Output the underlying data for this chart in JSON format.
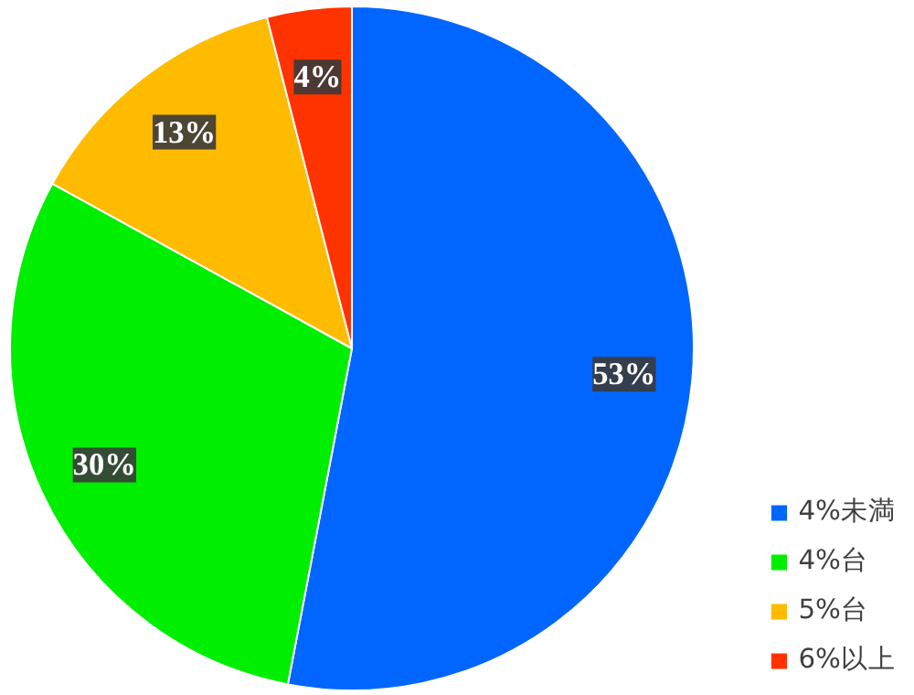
{
  "chart_data": {
    "type": "pie",
    "categories": [
      "4%未満",
      "4%台",
      "5%台",
      "6%以上"
    ],
    "values": [
      53,
      30,
      13,
      4
    ],
    "colors": [
      "#0066ff",
      "#00ee00",
      "#ffbb00",
      "#ff3300"
    ],
    "value_labels": [
      "53%",
      "30%",
      "13%",
      "4%"
    ],
    "legend": "bottom right"
  }
}
